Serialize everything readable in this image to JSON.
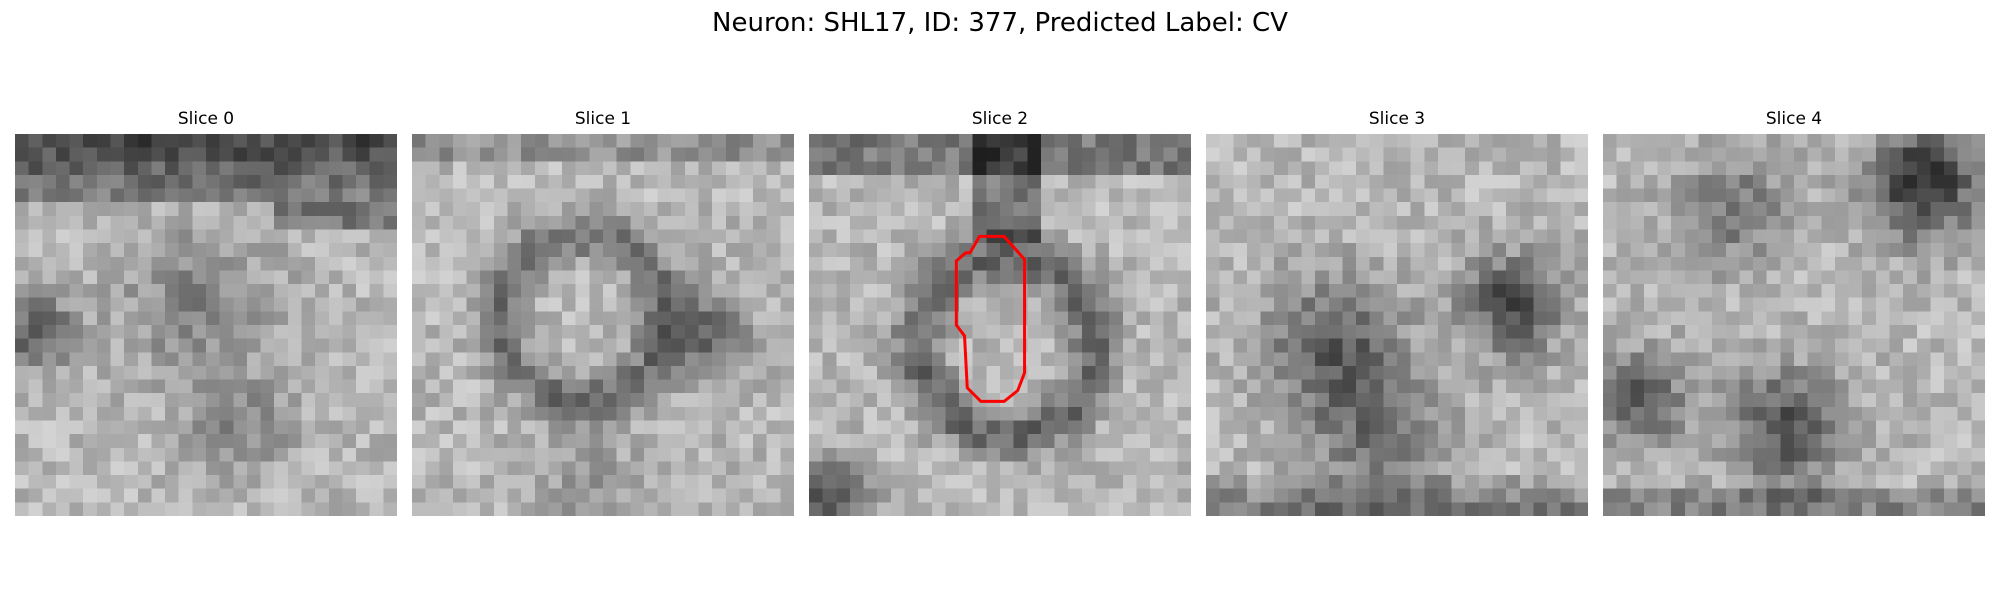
{
  "figure": {
    "title": "Neuron: SHL17, ID: 377, Predicted Label: CV",
    "panels": [
      {
        "title": "Slice 0"
      },
      {
        "title": "Slice 1"
      },
      {
        "title": "Slice 2",
        "contour_color": "#ff0000"
      },
      {
        "title": "Slice 3"
      },
      {
        "title": "Slice 4"
      }
    ]
  }
}
